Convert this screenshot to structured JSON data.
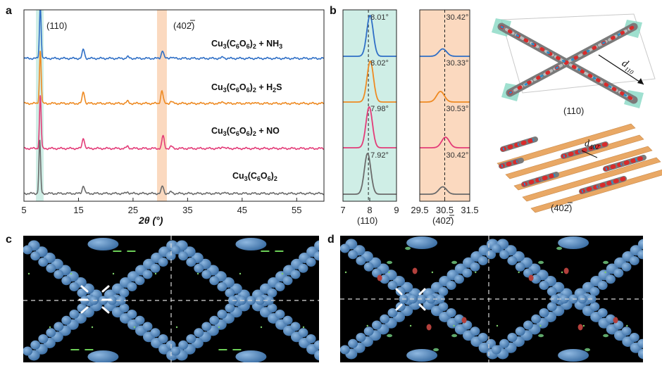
{
  "panels": {
    "a": "a",
    "b": "b",
    "c": "c",
    "d": "d"
  },
  "colors": {
    "nh3": "#2f6fc6",
    "h2s": "#ee8a22",
    "no": "#e33c78",
    "pristine": "#6b6b6b",
    "teal_band": "#cfeee6",
    "orange_band": "#fbd9bf"
  },
  "panel_a": {
    "peak_labels": [
      "(110)",
      "(402̄)"
    ],
    "x_ticks": [
      "5",
      "15",
      "25",
      "35",
      "45",
      "55"
    ],
    "x_axis_label": "2θ (°)",
    "series_labels": [
      "Cu3(C6O6)2 + NH3",
      "Cu3(C6O6)2 + H2S",
      "Cu3(C6O6)2 + NO",
      "Cu3(C6O6)2"
    ]
  },
  "panel_b": {
    "zoom110": {
      "x_ticks": [
        "7",
        "8",
        "9"
      ],
      "xlabel": "(110)",
      "peaks": [
        "8.01°",
        "8.02°",
        "7.98°",
        "7.92°"
      ]
    },
    "zoom402": {
      "x_ticks": [
        "29.5",
        "30.5",
        "31.5"
      ],
      "xlabel": "(402̄)",
      "peaks": [
        "30.42°",
        "30.33°",
        "30.53°",
        "30.42°"
      ]
    },
    "structure_labels": {
      "d110": "d110",
      "d402": "d402̄",
      "hkl110": "(110)",
      "hkl402": "(402̄)"
    }
  },
  "chart_data": [
    {
      "type": "line",
      "title": "",
      "xlabel": "2θ (°)",
      "ylabel": "",
      "xlim": [
        5,
        60
      ],
      "x_ticks": [
        5,
        15,
        25,
        35,
        45,
        55
      ],
      "highlight_bands": [
        [
          7.2,
          8.6
        ],
        [
          29.4,
          31.2
        ]
      ],
      "series": [
        {
          "name": "Cu3(C6O6)2 + NH3",
          "color": "#2f6fc6",
          "peaks": [
            {
              "x": 8.0,
              "h": 1.0
            },
            {
              "x": 15.9,
              "h": 0.17
            },
            {
              "x": 30.4,
              "h": 0.15
            },
            {
              "x": 24.0,
              "h": 0.03
            },
            {
              "x": 32.0,
              "h": 0.03
            },
            {
              "x": 41.5,
              "h": 0.025
            }
          ]
        },
        {
          "name": "Cu3(C6O6)2 + H2S",
          "color": "#ee8a22",
          "peaks": [
            {
              "x": 8.0,
              "h": 1.0
            },
            {
              "x": 15.9,
              "h": 0.22
            },
            {
              "x": 30.3,
              "h": 0.24
            },
            {
              "x": 24.0,
              "h": 0.04
            },
            {
              "x": 32.0,
              "h": 0.04
            },
            {
              "x": 41.5,
              "h": 0.035
            },
            {
              "x": 47.0,
              "h": 0.02
            }
          ]
        },
        {
          "name": "Cu3(C6O6)2 + NO",
          "color": "#e33c78",
          "peaks": [
            {
              "x": 8.0,
              "h": 1.0
            },
            {
              "x": 15.9,
              "h": 0.2
            },
            {
              "x": 30.5,
              "h": 0.24
            },
            {
              "x": 24.0,
              "h": 0.04
            },
            {
              "x": 32.0,
              "h": 0.04
            },
            {
              "x": 41.5,
              "h": 0.04
            }
          ]
        },
        {
          "name": "Cu3(C6O6)2",
          "color": "#6b6b6b",
          "peaks": [
            {
              "x": 7.9,
              "h": 1.0
            },
            {
              "x": 15.9,
              "h": 0.15
            },
            {
              "x": 30.4,
              "h": 0.14
            },
            {
              "x": 24.0,
              "h": 0.03
            },
            {
              "x": 32.0,
              "h": 0.03
            },
            {
              "x": 41.5,
              "h": 0.02
            }
          ]
        }
      ]
    },
    {
      "type": "line",
      "title": "(110)",
      "xlim": [
        7,
        9
      ],
      "x_ticks": [
        7,
        8,
        9
      ],
      "dashed_line_x": 7.95,
      "series": [
        {
          "name": "Cu3(C6O6)2 + NH3",
          "center": 8.01,
          "label": "8.01°",
          "height": 1.0
        },
        {
          "name": "Cu3(C6O6)2 + H2S",
          "center": 8.02,
          "label": "8.02°",
          "height": 1.0
        },
        {
          "name": "Cu3(C6O6)2 + NO",
          "center": 7.98,
          "label": "7.98°",
          "height": 1.0
        },
        {
          "name": "Cu3(C6O6)2",
          "center": 7.92,
          "label": "7.92°",
          "height": 1.0
        }
      ]
    },
    {
      "type": "line",
      "title": "(402̄)",
      "xlim": [
        29.5,
        31.5
      ],
      "x_ticks": [
        29.5,
        30.5,
        31.5
      ],
      "dashed_line_x": 30.5,
      "series": [
        {
          "name": "Cu3(C6O6)2 + NH3",
          "center": 30.42,
          "label": "30.42°",
          "height": 0.35
        },
        {
          "name": "Cu3(C6O6)2 + H2S",
          "center": 30.33,
          "label": "30.33°",
          "height": 0.5
        },
        {
          "name": "Cu3(C6O6)2 + NO",
          "center": 30.53,
          "label": "30.53°",
          "height": 0.5
        },
        {
          "name": "Cu3(C6O6)2",
          "center": 30.42,
          "label": "30.42°",
          "height": 0.35
        }
      ]
    }
  ]
}
